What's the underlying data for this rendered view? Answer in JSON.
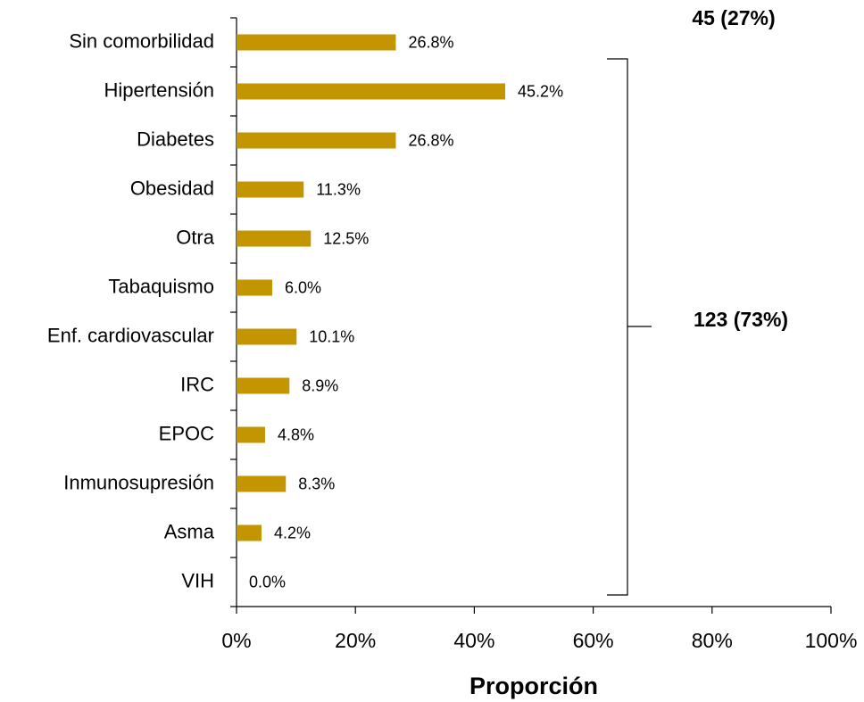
{
  "chart_data": {
    "type": "hbar",
    "categories": [
      "Sin comorbilidad",
      "Hipertensión",
      "Diabetes",
      "Obesidad",
      "Otra",
      "Tabaquismo",
      "Enf. cardiovascular",
      "IRC",
      "EPOC",
      "Inmunosupresión",
      "Asma",
      "VIH"
    ],
    "values": [
      26.8,
      45.2,
      26.8,
      11.3,
      12.5,
      6.0,
      10.1,
      8.9,
      4.8,
      8.3,
      4.2,
      0.0
    ],
    "value_labels": [
      "26.8%",
      "45.2%",
      "26.8%",
      "11.3%",
      "12.5%",
      "6.0%",
      "10.1%",
      "8.9%",
      "4.8%",
      "8.3%",
      "4.2%",
      "0.0%"
    ],
    "color": "#c39500",
    "xlim": [
      0,
      100
    ],
    "xticks": [
      {
        "value": 0,
        "label": "0%"
      },
      {
        "value": 20,
        "label": "20%"
      },
      {
        "value": 40,
        "label": "40%"
      },
      {
        "value": 60,
        "label": "60%"
      },
      {
        "value": 80,
        "label": "80%"
      },
      {
        "value": 100,
        "label": "100%"
      }
    ],
    "xlabel": "Proporción",
    "annotations": [
      "45 (27%)",
      "123 (73%)"
    ]
  }
}
